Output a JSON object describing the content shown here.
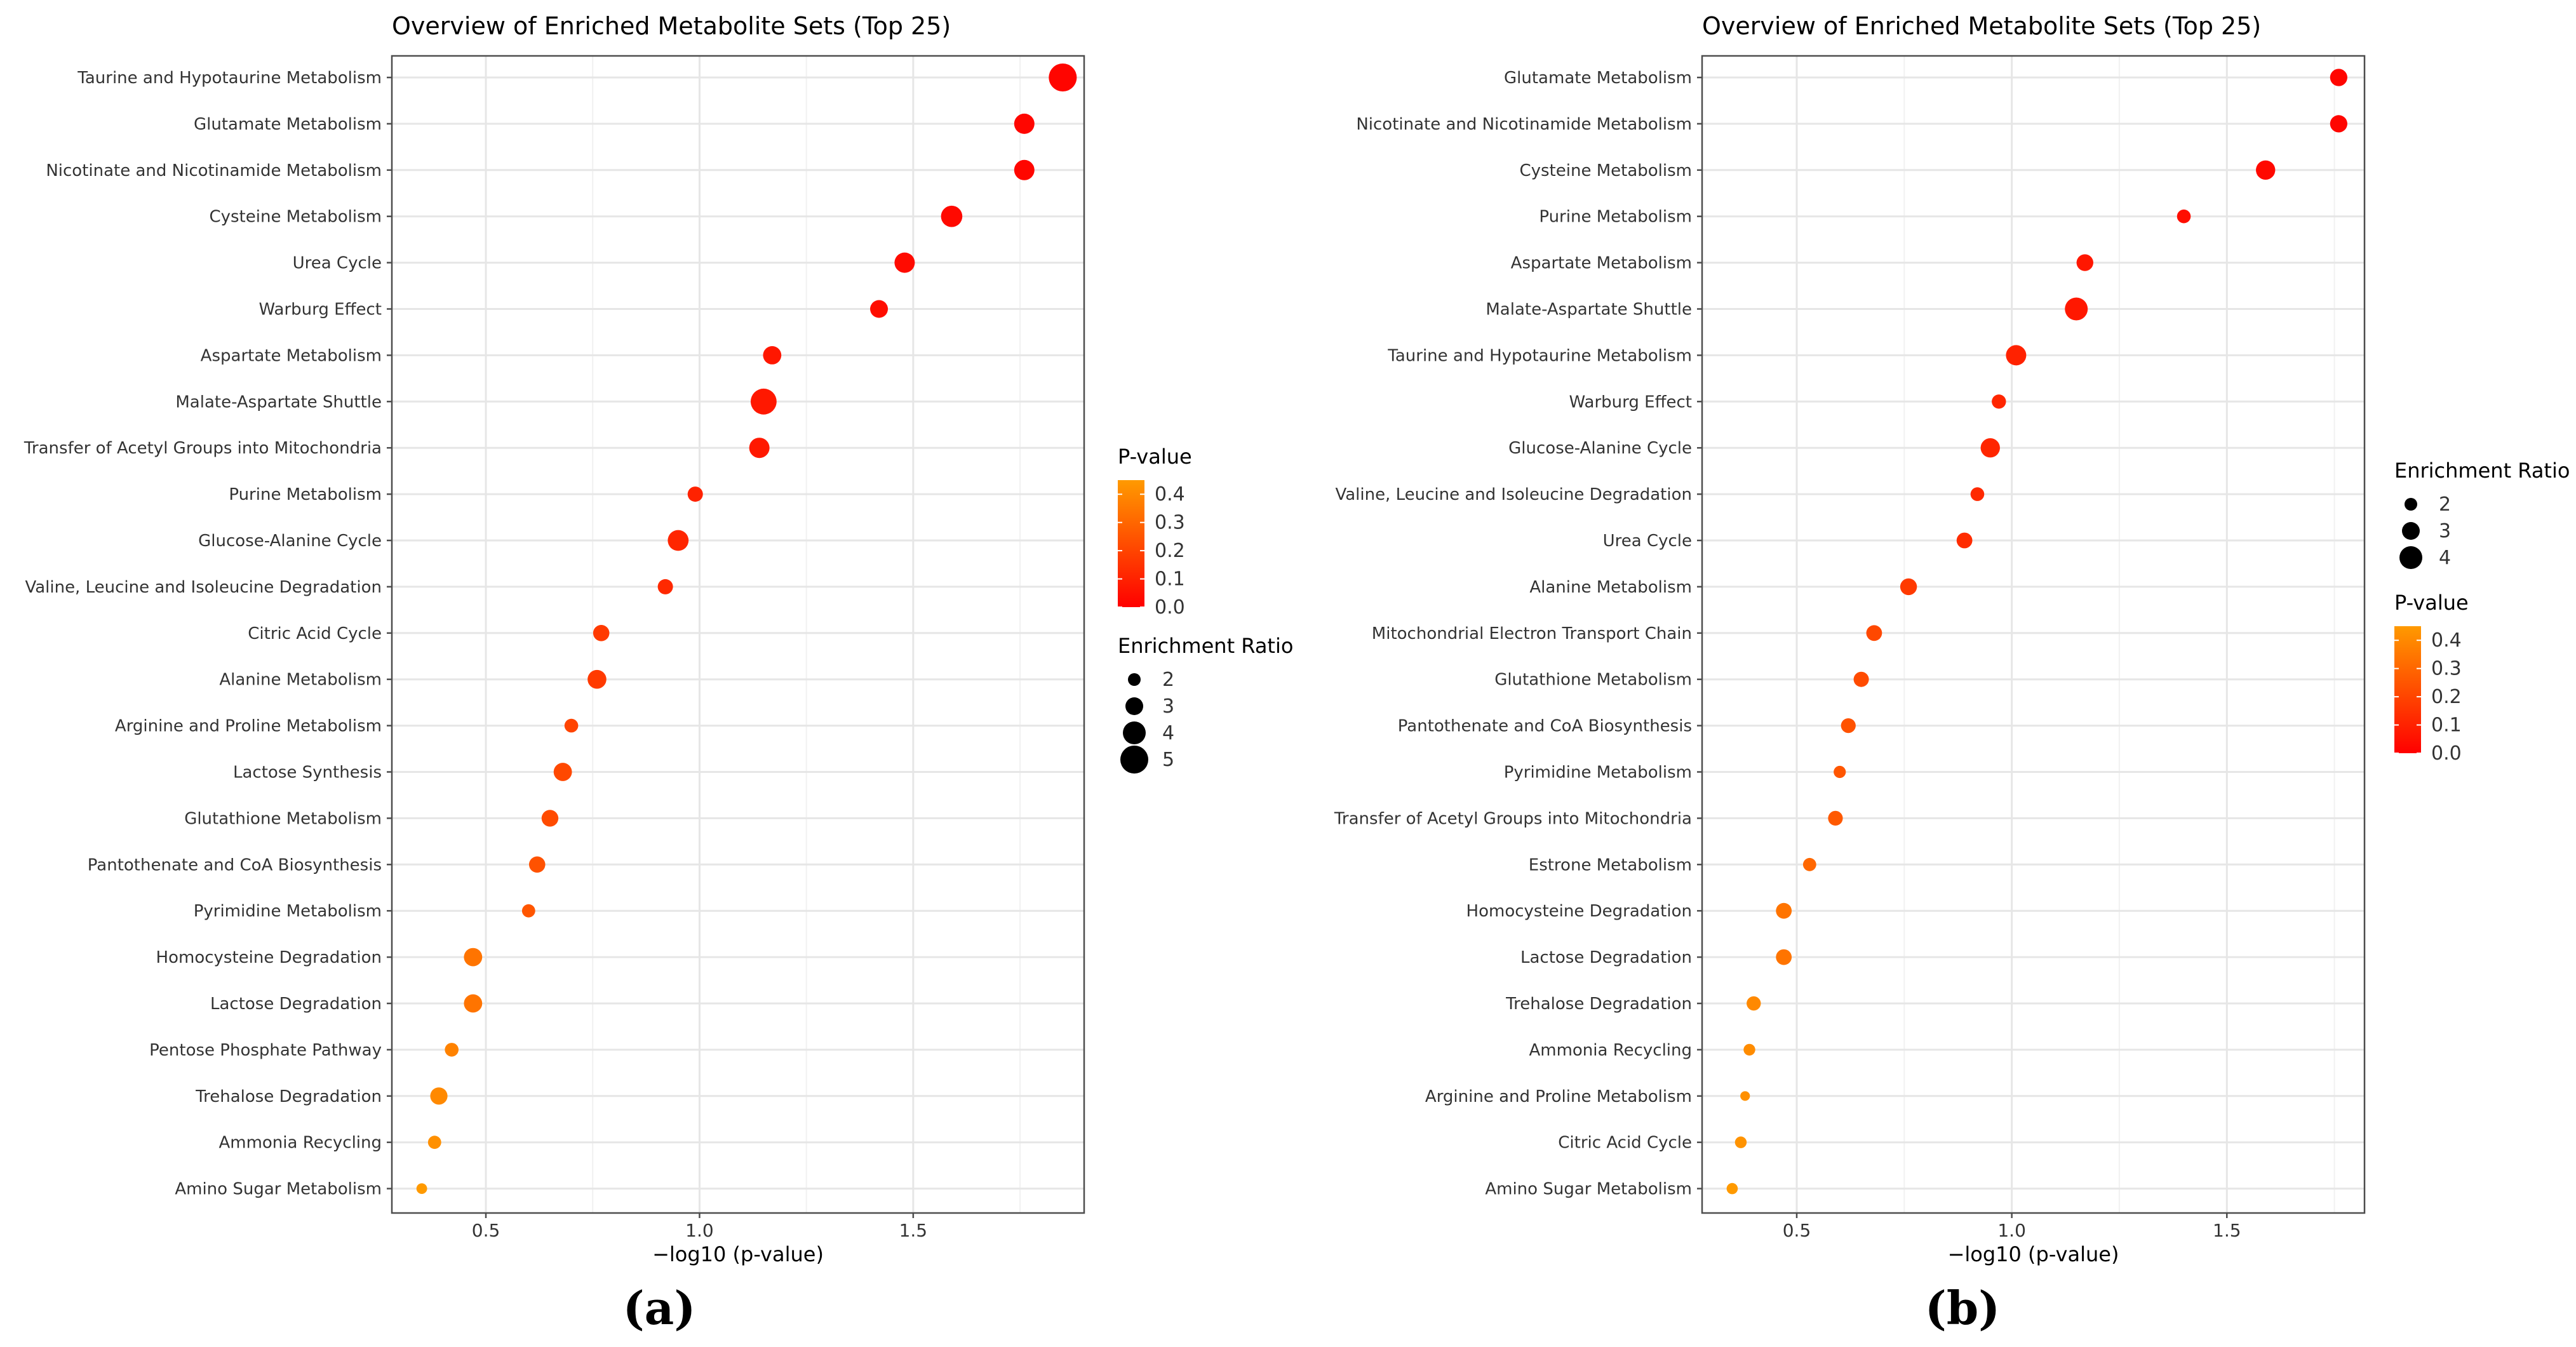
{
  "colors": {
    "high_p": "#ff9a00",
    "low_p": "#ff0000",
    "grid": "#e6e6e6",
    "panel_border": "#4d4d4d",
    "text": "#333333"
  },
  "chart_data": [
    {
      "type": "scatter",
      "panel_label": "(a)",
      "title": "Overview of Enriched Metabolite Sets (Top 25)",
      "xlabel": "−log10 (p-value)",
      "ylabel": "",
      "xlim": [
        0.28,
        1.9
      ],
      "x_ticks": [
        0.5,
        1.0,
        1.5
      ],
      "x_tick_labels": [
        "0.5",
        "1.0",
        "1.5"
      ],
      "grid": true,
      "legend_order": [
        "color",
        "size"
      ],
      "color_legend": {
        "title": "P-value",
        "range": [
          0.0,
          0.45
        ],
        "ticks": [
          0.4,
          0.3,
          0.2,
          0.1,
          0.0
        ],
        "tick_labels": [
          "0.4",
          "0.3",
          "0.2",
          "0.1",
          "0.0"
        ]
      },
      "size_legend": {
        "title": "Enrichment Ratio",
        "values": [
          2,
          3,
          4,
          5
        ],
        "labels": [
          "2",
          "3",
          "4",
          "5"
        ]
      },
      "points": [
        {
          "label": "Taurine and Hypotaurine Metabolism",
          "x": 1.85,
          "ratio": 5.0,
          "p": 0.014
        },
        {
          "label": "Glutamate Metabolism",
          "x": 1.76,
          "ratio": 3.5,
          "p": 0.017
        },
        {
          "label": "Nicotinate and Nicotinamide Metabolism",
          "x": 1.76,
          "ratio": 3.5,
          "p": 0.017
        },
        {
          "label": "Cysteine Metabolism",
          "x": 1.59,
          "ratio": 3.7,
          "p": 0.026
        },
        {
          "label": "Urea Cycle",
          "x": 1.48,
          "ratio": 3.5,
          "p": 0.033
        },
        {
          "label": "Warburg Effect",
          "x": 1.42,
          "ratio": 3.0,
          "p": 0.038
        },
        {
          "label": "Aspartate Metabolism",
          "x": 1.17,
          "ratio": 3.1,
          "p": 0.068
        },
        {
          "label": "Malate-Aspartate Shuttle",
          "x": 1.15,
          "ratio": 4.6,
          "p": 0.071
        },
        {
          "label": "Transfer of Acetyl Groups into Mitochondria",
          "x": 1.14,
          "ratio": 3.5,
          "p": 0.072
        },
        {
          "label": "Purine Metabolism",
          "x": 0.99,
          "ratio": 2.5,
          "p": 0.1
        },
        {
          "label": "Glucose-Alanine Cycle",
          "x": 0.95,
          "ratio": 3.6,
          "p": 0.11
        },
        {
          "label": "Valine, Leucine and Isoleucine Degradation",
          "x": 0.92,
          "ratio": 2.5,
          "p": 0.12
        },
        {
          "label": "Citric Acid Cycle",
          "x": 0.77,
          "ratio": 2.7,
          "p": 0.17
        },
        {
          "label": "Alanine Metabolism",
          "x": 0.76,
          "ratio": 3.2,
          "p": 0.17
        },
        {
          "label": "Arginine and Proline Metabolism",
          "x": 0.7,
          "ratio": 2.2,
          "p": 0.2
        },
        {
          "label": "Lactose Synthesis",
          "x": 0.68,
          "ratio": 3.1,
          "p": 0.21
        },
        {
          "label": "Glutathione Metabolism",
          "x": 0.65,
          "ratio": 2.8,
          "p": 0.22
        },
        {
          "label": "Pantothenate and CoA Biosynthesis",
          "x": 0.62,
          "ratio": 2.7,
          "p": 0.24
        },
        {
          "label": "Pyrimidine Metabolism",
          "x": 0.6,
          "ratio": 2.1,
          "p": 0.25
        },
        {
          "label": "Homocysteine Degradation",
          "x": 0.47,
          "ratio": 3.1,
          "p": 0.34
        },
        {
          "label": "Lactose Degradation",
          "x": 0.47,
          "ratio": 3.1,
          "p": 0.34
        },
        {
          "label": "Pentose Phosphate Pathway",
          "x": 0.42,
          "ratio": 2.2,
          "p": 0.38
        },
        {
          "label": "Trehalose Degradation",
          "x": 0.39,
          "ratio": 2.9,
          "p": 0.4
        },
        {
          "label": "Ammonia Recycling",
          "x": 0.38,
          "ratio": 2.1,
          "p": 0.42
        },
        {
          "label": "Amino Sugar Metabolism",
          "x": 0.35,
          "ratio": 1.6,
          "p": 0.45
        }
      ]
    },
    {
      "type": "scatter",
      "panel_label": "(b)",
      "title": "Overview of Enriched Metabolite Sets (Top 25)",
      "xlabel": "−log10 (p-value)",
      "ylabel": "",
      "xlim": [
        0.28,
        1.82
      ],
      "x_ticks": [
        0.5,
        1.0,
        1.5
      ],
      "x_tick_labels": [
        "0.5",
        "1.0",
        "1.5"
      ],
      "grid": true,
      "legend_order": [
        "size",
        "color"
      ],
      "color_legend": {
        "title": "P-value",
        "range": [
          0.0,
          0.45
        ],
        "ticks": [
          0.4,
          0.3,
          0.2,
          0.1,
          0.0
        ],
        "tick_labels": [
          "0.4",
          "0.3",
          "0.2",
          "0.1",
          "0.0"
        ]
      },
      "size_legend": {
        "title": "Enrichment Ratio",
        "values": [
          2,
          3,
          4
        ],
        "labels": [
          "2",
          "3",
          "4"
        ]
      },
      "points": [
        {
          "label": "Glutamate Metabolism",
          "x": 1.76,
          "ratio": 2.9,
          "p": 0.017
        },
        {
          "label": "Nicotinate and Nicotinamide Metabolism",
          "x": 1.76,
          "ratio": 2.9,
          "p": 0.017
        },
        {
          "label": "Cysteine Metabolism",
          "x": 1.59,
          "ratio": 3.3,
          "p": 0.026
        },
        {
          "label": "Purine Metabolism",
          "x": 1.4,
          "ratio": 2.2,
          "p": 0.04
        },
        {
          "label": "Aspartate Metabolism",
          "x": 1.17,
          "ratio": 2.8,
          "p": 0.068
        },
        {
          "label": "Malate-Aspartate Shuttle",
          "x": 1.15,
          "ratio": 4.0,
          "p": 0.071
        },
        {
          "label": "Taurine and Hypotaurine Metabolism",
          "x": 1.01,
          "ratio": 3.5,
          "p": 0.098
        },
        {
          "label": "Warburg Effect",
          "x": 0.97,
          "ratio": 2.3,
          "p": 0.11
        },
        {
          "label": "Glucose-Alanine Cycle",
          "x": 0.95,
          "ratio": 3.3,
          "p": 0.11
        },
        {
          "label": "Valine, Leucine and Isoleucine Degradation",
          "x": 0.92,
          "ratio": 2.2,
          "p": 0.12
        },
        {
          "label": "Urea Cycle",
          "x": 0.89,
          "ratio": 2.6,
          "p": 0.13
        },
        {
          "label": "Alanine Metabolism",
          "x": 0.76,
          "ratio": 2.8,
          "p": 0.17
        },
        {
          "label": "Mitochondrial Electron Transport Chain",
          "x": 0.68,
          "ratio": 2.6,
          "p": 0.21
        },
        {
          "label": "Glutathione Metabolism",
          "x": 0.65,
          "ratio": 2.5,
          "p": 0.22
        },
        {
          "label": "Pantothenate and CoA Biosynthesis",
          "x": 0.62,
          "ratio": 2.4,
          "p": 0.24
        },
        {
          "label": "Pyrimidine Metabolism",
          "x": 0.6,
          "ratio": 1.9,
          "p": 0.25
        },
        {
          "label": "Transfer of Acetyl Groups into Mitochondria",
          "x": 0.59,
          "ratio": 2.4,
          "p": 0.26
        },
        {
          "label": "Estrone Metabolism",
          "x": 0.53,
          "ratio": 2.1,
          "p": 0.3
        },
        {
          "label": "Homocysteine Degradation",
          "x": 0.47,
          "ratio": 2.6,
          "p": 0.34
        },
        {
          "label": "Lactose Degradation",
          "x": 0.47,
          "ratio": 2.6,
          "p": 0.34
        },
        {
          "label": "Trehalose Degradation",
          "x": 0.4,
          "ratio": 2.3,
          "p": 0.4
        },
        {
          "label": "Ammonia Recycling",
          "x": 0.39,
          "ratio": 1.8,
          "p": 0.41
        },
        {
          "label": "Arginine and Proline Metabolism",
          "x": 0.38,
          "ratio": 1.4,
          "p": 0.42
        },
        {
          "label": "Citric Acid Cycle",
          "x": 0.37,
          "ratio": 1.8,
          "p": 0.43
        },
        {
          "label": "Amino Sugar Metabolism",
          "x": 0.35,
          "ratio": 1.7,
          "p": 0.45
        }
      ]
    }
  ]
}
